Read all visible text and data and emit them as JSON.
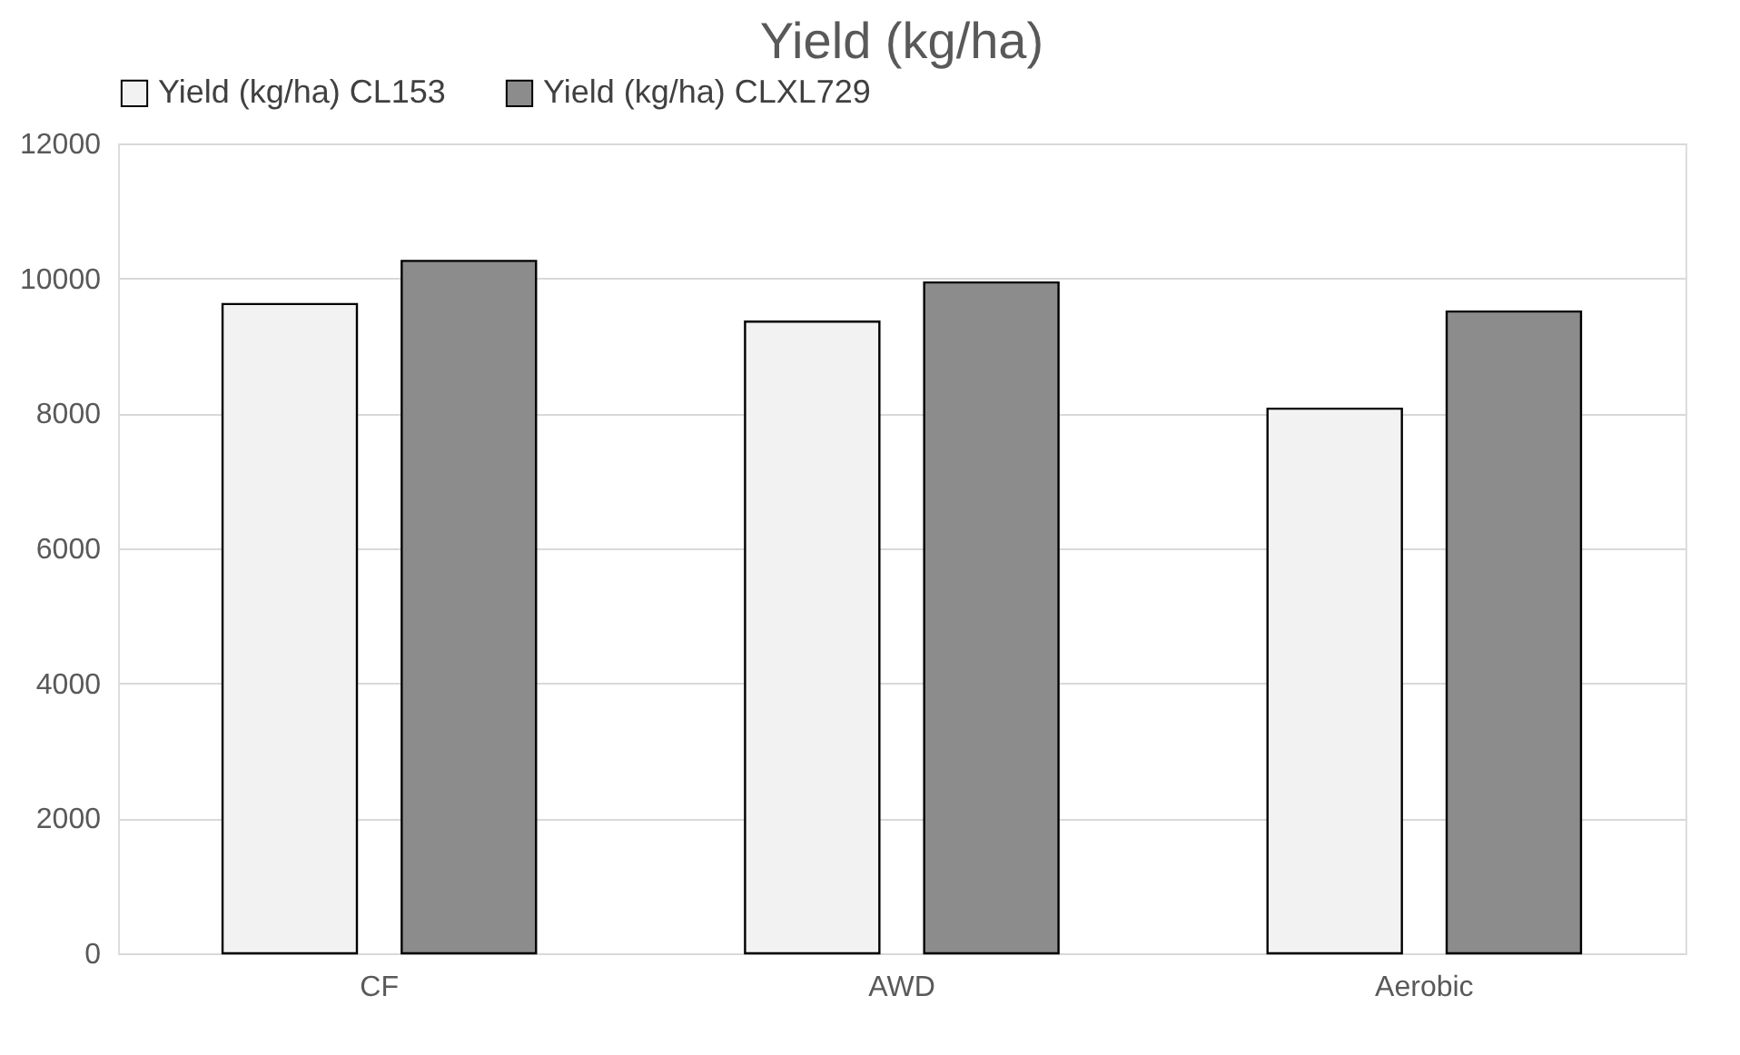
{
  "chart_data": {
    "type": "bar",
    "title": "Yield (kg/ha)",
    "categories": [
      "CF",
      "AWD",
      "Aerobic"
    ],
    "series": [
      {
        "name": "Yield (kg/ha) CL153",
        "color": "#f2f2f2",
        "values": [
          9620,
          9360,
          8070
        ]
      },
      {
        "name": "Yield (kg/ha) CLXL729",
        "color": "#8c8c8c",
        "values": [
          10260,
          9940,
          9510
        ]
      }
    ],
    "ylim": [
      0,
      12000
    ],
    "yticks": [
      0,
      2000,
      4000,
      6000,
      8000,
      10000,
      12000
    ],
    "grid": "y",
    "legend": "top"
  }
}
